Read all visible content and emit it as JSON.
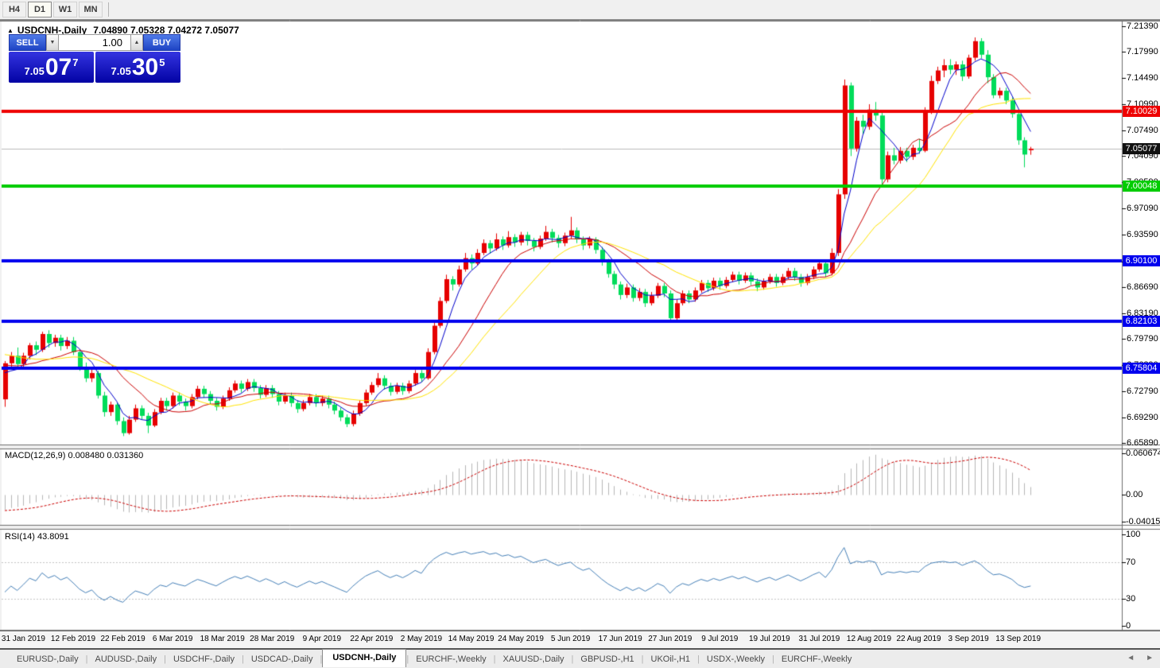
{
  "toolbar": {
    "timeframes": [
      {
        "label": "H4",
        "active": false
      },
      {
        "label": "D1",
        "active": true
      },
      {
        "label": "W1",
        "active": false
      },
      {
        "label": "MN",
        "active": false
      }
    ]
  },
  "chart": {
    "marker": "▲",
    "symbol_label": "USDCNH-,Daily",
    "ohlc": "7.04890 7.05328 7.04272 7.05077"
  },
  "trade_panel": {
    "sell_label": "SELL",
    "buy_label": "BUY",
    "lot": "1.00",
    "spin_down": "▼",
    "spin_up": "▲",
    "sell_small": "7.05",
    "sell_big": "07",
    "sell_sup": "7",
    "buy_small": "7.05",
    "buy_big": "30",
    "buy_sup": "5"
  },
  "price_axis": {
    "ticks": [
      {
        "label": "7.21390",
        "price": 7.2139
      },
      {
        "label": "7.17990",
        "price": 7.1799
      },
      {
        "label": "7.14490",
        "price": 7.1449
      },
      {
        "label": "7.10990",
        "price": 7.1099
      },
      {
        "label": "7.07490",
        "price": 7.0749
      },
      {
        "label": "7.04090",
        "price": 7.0409
      },
      {
        "label": "7.00590",
        "price": 7.0059
      },
      {
        "label": "6.97090",
        "price": 6.9709
      },
      {
        "label": "6.93590",
        "price": 6.9359
      },
      {
        "label": "6.90090",
        "price": 6.9009
      },
      {
        "label": "6.86690",
        "price": 6.8669
      },
      {
        "label": "6.83190",
        "price": 6.8319
      },
      {
        "label": "6.79790",
        "price": 6.7979
      },
      {
        "label": "6.76290",
        "price": 6.7629
      },
      {
        "label": "6.72790",
        "price": 6.7279
      },
      {
        "label": "6.69290",
        "price": 6.6929
      },
      {
        "label": "6.65890",
        "price": 6.6589
      }
    ]
  },
  "sr_lines": [
    {
      "label": "7.10029",
      "price": 7.10029,
      "color": "#ee0000",
      "name": "resistance-line"
    },
    {
      "label": "7.00048",
      "price": 7.00048,
      "color": "#00cc00",
      "name": "support-line-green"
    },
    {
      "label": "6.90100",
      "price": 6.901,
      "color": "#0000ee",
      "name": "support-line-blue-1"
    },
    {
      "label": "6.82103",
      "price": 6.82103,
      "color": "#0000ee",
      "name": "support-line-blue-2"
    },
    {
      "label": "6.75804",
      "price": 6.75804,
      "color": "#0000ee",
      "name": "support-line-blue-3"
    }
  ],
  "current_price": {
    "label": "7.05077",
    "value": 7.05077,
    "line_color": "#bcbcbc",
    "badge_bg": "#111111"
  },
  "macd": {
    "label": "MACD(12,26,9) 0.008480 0.031360",
    "fast": 12,
    "slow": 26,
    "signal": 9,
    "axis": [
      {
        "label": "0.060674",
        "value": 0.060674
      },
      {
        "label": "0.00",
        "value": 0
      },
      {
        "label": "-0.040152",
        "value": -0.040152
      }
    ],
    "bar_color": "#b6b6b6",
    "signal_color": "#cc0000"
  },
  "rsi": {
    "label": "RSI(14) 43.8091",
    "period": 14,
    "axis": [
      {
        "label": "100",
        "value": 100
      },
      {
        "label": "70",
        "value": 70
      },
      {
        "label": "30",
        "value": 30
      },
      {
        "label": "0",
        "value": 0
      }
    ],
    "levels": [
      70,
      30
    ],
    "color": "#4580b8"
  },
  "tabs": {
    "items": [
      {
        "label": "EURUSD-,Daily",
        "active": false
      },
      {
        "label": "AUDUSD-,Daily",
        "active": false
      },
      {
        "label": "USDCHF-,Daily",
        "active": false
      },
      {
        "label": "USDCAD-,Daily",
        "active": false
      },
      {
        "label": "USDCNH-,Daily",
        "active": true
      },
      {
        "label": "EURCHF-,Weekly",
        "active": false
      },
      {
        "label": "XAUUSD-,Daily",
        "active": false
      },
      {
        "label": "GBPUSD-,H1",
        "active": false
      },
      {
        "label": "UKOil-,H1",
        "active": false
      },
      {
        "label": "USDX-,Weekly",
        "active": false
      },
      {
        "label": "EURCHF-,Weekly",
        "active": false
      }
    ],
    "nav_left": "◄",
    "nav_right": "►"
  },
  "chart_data": {
    "type": "candlestick",
    "symbol": "USDCNH",
    "timeframe": "Daily",
    "up_color": "#e60000",
    "down_color": "#00dc5a",
    "ma_lines": [
      {
        "period": 5,
        "color": "#0000cc"
      },
      {
        "period": 13,
        "color": "#cc0000"
      },
      {
        "period": 21,
        "color": "#ffe400"
      }
    ],
    "ylim": [
      6.6589,
      7.2139
    ],
    "date_labels": [
      {
        "text": "31 Jan 2019",
        "index": 3
      },
      {
        "text": "12 Feb 2019",
        "index": 11
      },
      {
        "text": "22 Feb 2019",
        "index": 19
      },
      {
        "text": "6 Mar 2019",
        "index": 27
      },
      {
        "text": "18 Mar 2019",
        "index": 35
      },
      {
        "text": "28 Mar 2019",
        "index": 43
      },
      {
        "text": "9 Apr 2019",
        "index": 51
      },
      {
        "text": "22 Apr 2019",
        "index": 59
      },
      {
        "text": "2 May 2019",
        "index": 67
      },
      {
        "text": "14 May 2019",
        "index": 75
      },
      {
        "text": "24 May 2019",
        "index": 83
      },
      {
        "text": "5 Jun 2019",
        "index": 91
      },
      {
        "text": "17 Jun 2019",
        "index": 99
      },
      {
        "text": "27 Jun 2019",
        "index": 107
      },
      {
        "text": "9 Jul 2019",
        "index": 115
      },
      {
        "text": "19 Jul 2019",
        "index": 123
      },
      {
        "text": "31 Jul 2019",
        "index": 131
      },
      {
        "text": "12 Aug 2019",
        "index": 139
      },
      {
        "text": "22 Aug 2019",
        "index": 147
      },
      {
        "text": "3 Sep 2019",
        "index": 155
      },
      {
        "text": "13 Sep 2019",
        "index": 163
      }
    ],
    "candles": [
      [
        6.717,
        6.768,
        6.707,
        6.765
      ],
      [
        6.765,
        6.78,
        6.76,
        6.775
      ],
      [
        6.775,
        6.786,
        6.76,
        6.764
      ],
      [
        6.764,
        6.779,
        6.758,
        6.775
      ],
      [
        6.775,
        6.792,
        6.77,
        6.789
      ],
      [
        6.789,
        6.794,
        6.776,
        6.783
      ],
      [
        6.783,
        6.807,
        6.78,
        6.804
      ],
      [
        6.804,
        6.809,
        6.786,
        6.792
      ],
      [
        6.792,
        6.803,
        6.787,
        6.799
      ],
      [
        6.799,
        6.803,
        6.782,
        6.788
      ],
      [
        6.788,
        6.8,
        6.784,
        6.795
      ],
      [
        6.795,
        6.8,
        6.776,
        6.78
      ],
      [
        6.78,
        6.784,
        6.755,
        6.76
      ],
      [
        6.76,
        6.766,
        6.74,
        6.745
      ],
      [
        6.745,
        6.757,
        6.74,
        6.752
      ],
      [
        6.752,
        6.755,
        6.718,
        6.722
      ],
      [
        6.722,
        6.727,
        6.694,
        6.7
      ],
      [
        6.7,
        6.714,
        6.695,
        6.71
      ],
      [
        6.71,
        6.712,
        6.683,
        6.688
      ],
      [
        6.688,
        6.693,
        6.668,
        6.672
      ],
      [
        6.672,
        6.695,
        6.67,
        6.69
      ],
      [
        6.69,
        6.71,
        6.687,
        6.705
      ],
      [
        6.705,
        6.709,
        6.69,
        6.695
      ],
      [
        6.695,
        6.699,
        6.672,
        6.682
      ],
      [
        6.682,
        6.704,
        6.68,
        6.7
      ],
      [
        6.7,
        6.719,
        6.697,
        6.715
      ],
      [
        6.715,
        6.719,
        6.702,
        6.708
      ],
      [
        6.708,
        6.726,
        6.705,
        6.722
      ],
      [
        6.722,
        6.726,
        6.709,
        6.714
      ],
      [
        6.714,
        6.718,
        6.702,
        6.708
      ],
      [
        6.708,
        6.724,
        6.705,
        6.72
      ],
      [
        6.72,
        6.735,
        6.717,
        6.731
      ],
      [
        6.731,
        6.735,
        6.719,
        6.724
      ],
      [
        6.724,
        6.728,
        6.71,
        6.715
      ],
      [
        6.715,
        6.719,
        6.702,
        6.707
      ],
      [
        6.707,
        6.722,
        6.704,
        6.718
      ],
      [
        6.718,
        6.733,
        6.715,
        6.729
      ],
      [
        6.729,
        6.742,
        6.726,
        6.738
      ],
      [
        6.738,
        6.742,
        6.726,
        6.731
      ],
      [
        6.731,
        6.744,
        6.728,
        6.74
      ],
      [
        6.74,
        6.744,
        6.727,
        6.732
      ],
      [
        6.732,
        6.736,
        6.718,
        6.723
      ],
      [
        6.723,
        6.736,
        6.72,
        6.732
      ],
      [
        6.732,
        6.736,
        6.719,
        6.724
      ],
      [
        6.724,
        6.728,
        6.709,
        6.714
      ],
      [
        6.714,
        6.726,
        6.711,
        6.722
      ],
      [
        6.722,
        6.726,
        6.707,
        6.712
      ],
      [
        6.712,
        6.716,
        6.699,
        6.704
      ],
      [
        6.704,
        6.716,
        6.701,
        6.712
      ],
      [
        6.712,
        6.724,
        6.709,
        6.72
      ],
      [
        6.72,
        6.724,
        6.707,
        6.712
      ],
      [
        6.712,
        6.722,
        6.708,
        6.718
      ],
      [
        6.718,
        6.722,
        6.705,
        6.71
      ],
      [
        6.71,
        6.714,
        6.697,
        6.702
      ],
      [
        6.702,
        6.706,
        6.688,
        6.693
      ],
      [
        6.693,
        6.697,
        6.68,
        6.684
      ],
      [
        6.684,
        6.702,
        6.681,
        6.698
      ],
      [
        6.698,
        6.716,
        6.695,
        6.712
      ],
      [
        6.712,
        6.73,
        6.709,
        6.726
      ],
      [
        6.726,
        6.74,
        6.723,
        6.736
      ],
      [
        6.736,
        6.752,
        6.733,
        6.745
      ],
      [
        6.745,
        6.749,
        6.73,
        6.735
      ],
      [
        6.735,
        6.739,
        6.722,
        6.727
      ],
      [
        6.727,
        6.739,
        6.724,
        6.735
      ],
      [
        6.735,
        6.739,
        6.723,
        6.728
      ],
      [
        6.728,
        6.742,
        6.725,
        6.738
      ],
      [
        6.738,
        6.756,
        6.735,
        6.752
      ],
      [
        6.752,
        6.756,
        6.74,
        6.745
      ],
      [
        6.745,
        6.785,
        6.743,
        6.78
      ],
      [
        6.78,
        6.82,
        6.777,
        6.815
      ],
      [
        6.815,
        6.853,
        6.812,
        6.848
      ],
      [
        6.848,
        6.883,
        6.845,
        6.877
      ],
      [
        6.877,
        6.881,
        6.862,
        6.87
      ],
      [
        6.87,
        6.895,
        6.867,
        6.89
      ],
      [
        6.89,
        6.912,
        6.887,
        6.905
      ],
      [
        6.905,
        6.91,
        6.89,
        6.898
      ],
      [
        6.898,
        6.917,
        6.895,
        6.912
      ],
      [
        6.912,
        6.93,
        6.909,
        6.925
      ],
      [
        6.925,
        6.929,
        6.911,
        6.918
      ],
      [
        6.918,
        6.938,
        6.915,
        6.93
      ],
      [
        6.93,
        6.934,
        6.916,
        6.922
      ],
      [
        6.922,
        6.941,
        6.919,
        6.933
      ],
      [
        6.933,
        6.937,
        6.92,
        6.926
      ],
      [
        6.926,
        6.94,
        6.922,
        6.936
      ],
      [
        6.936,
        6.94,
        6.922,
        6.928
      ],
      [
        6.928,
        6.932,
        6.914,
        6.92
      ],
      [
        6.92,
        6.935,
        6.917,
        6.931
      ],
      [
        6.931,
        6.948,
        6.928,
        6.94
      ],
      [
        6.94,
        6.944,
        6.926,
        6.932
      ],
      [
        6.932,
        6.936,
        6.919,
        6.925
      ],
      [
        6.925,
        6.939,
        6.921,
        6.935
      ],
      [
        6.935,
        6.96,
        6.931,
        6.942
      ],
      [
        6.942,
        6.946,
        6.925,
        6.93
      ],
      [
        6.93,
        6.934,
        6.916,
        6.922
      ],
      [
        6.922,
        6.934,
        6.918,
        6.93
      ],
      [
        6.93,
        6.933,
        6.911,
        6.916
      ],
      [
        6.916,
        6.92,
        6.895,
        6.9
      ],
      [
        6.9,
        6.904,
        6.879,
        6.884
      ],
      [
        6.884,
        6.888,
        6.864,
        6.87
      ],
      [
        6.87,
        6.874,
        6.85,
        6.856
      ],
      [
        6.856,
        6.871,
        6.852,
        6.866
      ],
      [
        6.866,
        6.87,
        6.847,
        6.852
      ],
      [
        6.852,
        6.865,
        6.848,
        6.86
      ],
      [
        6.86,
        6.864,
        6.84,
        6.845
      ],
      [
        6.845,
        6.86,
        6.842,
        6.855
      ],
      [
        6.855,
        6.872,
        6.852,
        6.868
      ],
      [
        6.868,
        6.872,
        6.853,
        6.858
      ],
      [
        6.858,
        6.862,
        6.82,
        6.825
      ],
      [
        6.825,
        6.85,
        6.822,
        6.845
      ],
      [
        6.845,
        6.862,
        6.842,
        6.858
      ],
      [
        6.858,
        6.862,
        6.845,
        6.85
      ],
      [
        6.85,
        6.866,
        6.847,
        6.862
      ],
      [
        6.862,
        6.876,
        6.859,
        6.872
      ],
      [
        6.872,
        6.876,
        6.86,
        6.865
      ],
      [
        6.865,
        6.879,
        6.862,
        6.875
      ],
      [
        6.875,
        6.879,
        6.863,
        6.868
      ],
      [
        6.868,
        6.88,
        6.865,
        6.876
      ],
      [
        6.876,
        6.887,
        6.873,
        6.883
      ],
      [
        6.883,
        6.887,
        6.87,
        6.875
      ],
      [
        6.875,
        6.886,
        6.872,
        6.882
      ],
      [
        6.882,
        6.886,
        6.869,
        6.874
      ],
      [
        6.874,
        6.878,
        6.861,
        6.866
      ],
      [
        6.866,
        6.878,
        6.863,
        6.874
      ],
      [
        6.874,
        6.884,
        6.871,
        6.88
      ],
      [
        6.88,
        6.884,
        6.867,
        6.872
      ],
      [
        6.872,
        6.884,
        6.869,
        6.88
      ],
      [
        6.88,
        6.892,
        6.877,
        6.888
      ],
      [
        6.888,
        6.892,
        6.875,
        6.88
      ],
      [
        6.88,
        6.884,
        6.867,
        6.872
      ],
      [
        6.872,
        6.884,
        6.869,
        6.88
      ],
      [
        6.88,
        6.894,
        6.877,
        6.89
      ],
      [
        6.89,
        6.902,
        6.887,
        6.898
      ],
      [
        6.898,
        6.902,
        6.88,
        6.885
      ],
      [
        6.885,
        6.918,
        6.882,
        6.912
      ],
      [
        6.912,
        6.997,
        6.908,
        6.99
      ],
      [
        6.99,
        7.143,
        6.984,
        7.135
      ],
      [
        7.135,
        7.139,
        7.041,
        7.051
      ],
      [
        7.051,
        7.093,
        7.047,
        7.088
      ],
      [
        7.088,
        7.096,
        7.07,
        7.08
      ],
      [
        7.08,
        7.11,
        7.076,
        7.103
      ],
      [
        7.103,
        7.113,
        7.088,
        7.095
      ],
      [
        7.095,
        7.099,
        7.001,
        7.01
      ],
      [
        7.01,
        7.047,
        7.006,
        7.042
      ],
      [
        7.042,
        7.052,
        7.03,
        7.035
      ],
      [
        7.035,
        7.053,
        7.031,
        7.048
      ],
      [
        7.048,
        7.052,
        7.033,
        7.04
      ],
      [
        7.04,
        7.056,
        7.036,
        7.052
      ],
      [
        7.052,
        7.064,
        7.044,
        7.048
      ],
      [
        7.048,
        7.106,
        7.046,
        7.101
      ],
      [
        7.101,
        7.148,
        7.097,
        7.141
      ],
      [
        7.141,
        7.16,
        7.137,
        7.155
      ],
      [
        7.155,
        7.17,
        7.146,
        7.162
      ],
      [
        7.162,
        7.17,
        7.15,
        7.156
      ],
      [
        7.156,
        7.167,
        7.149,
        7.163
      ],
      [
        7.163,
        7.168,
        7.141,
        7.147
      ],
      [
        7.147,
        7.176,
        7.144,
        7.172
      ],
      [
        7.172,
        7.199,
        7.168,
        7.194
      ],
      [
        7.194,
        7.198,
        7.171,
        7.176
      ],
      [
        7.176,
        7.182,
        7.138,
        7.146
      ],
      [
        7.146,
        7.15,
        7.118,
        7.122
      ],
      [
        7.122,
        7.132,
        7.118,
        7.128
      ],
      [
        7.128,
        7.132,
        7.11,
        7.115
      ],
      [
        7.115,
        7.119,
        7.092,
        7.097
      ],
      [
        7.097,
        7.101,
        7.056,
        7.062
      ],
      [
        7.062,
        7.066,
        7.026,
        7.043
      ],
      [
        7.0489,
        7.05328,
        7.04272,
        7.05077
      ]
    ]
  }
}
